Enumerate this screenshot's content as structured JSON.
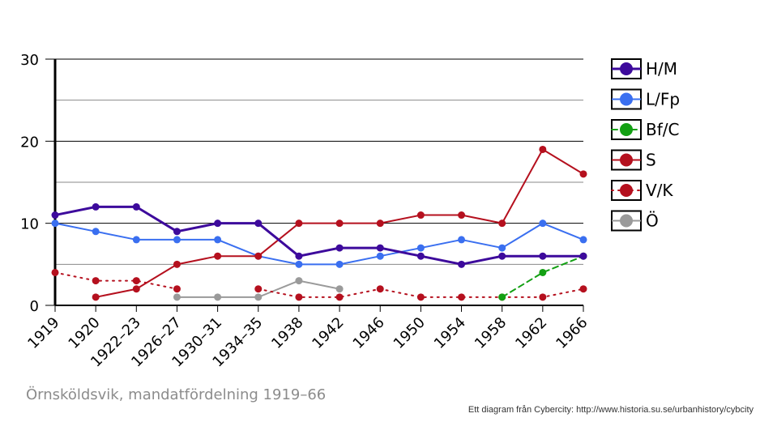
{
  "chart_data": {
    "type": "line",
    "categories": [
      "1919",
      "1920",
      "1922–23",
      "1926–27",
      "1930–31",
      "1934–35",
      "1938",
      "1942",
      "1946",
      "1950",
      "1954",
      "1958",
      "1962",
      "1966"
    ],
    "ylim": [
      0,
      30
    ],
    "yticks": [
      0,
      10,
      20,
      30
    ],
    "grid": "horizontal",
    "legend": "right",
    "series": [
      {
        "name": "H/M",
        "color": "#3d0a9c",
        "style": "solid",
        "bold": true,
        "values": [
          11,
          12,
          12,
          9,
          10,
          10,
          6,
          7,
          7,
          6,
          5,
          6,
          6,
          6
        ]
      },
      {
        "name": "L/Fp",
        "color": "#3a6ff0",
        "style": "solid",
        "bold": false,
        "values": [
          10,
          9,
          8,
          8,
          8,
          6,
          5,
          5,
          6,
          7,
          8,
          7,
          10,
          8
        ]
      },
      {
        "name": "Bf/C",
        "color": "#13a013",
        "style": "dashed",
        "bold": false,
        "values": [
          null,
          null,
          null,
          null,
          null,
          null,
          null,
          null,
          null,
          null,
          null,
          1,
          4,
          6
        ]
      },
      {
        "name": "S",
        "color": "#b5101e",
        "style": "solid",
        "bold": false,
        "values": [
          null,
          1,
          2,
          5,
          6,
          6,
          10,
          10,
          10,
          11,
          11,
          10,
          19,
          16
        ]
      },
      {
        "name": "V/K",
        "color": "#b5101e",
        "style": "dotted",
        "bold": false,
        "values": [
          4,
          3,
          3,
          2,
          null,
          2,
          1,
          1,
          2,
          1,
          1,
          1,
          1,
          2
        ]
      },
      {
        "name": "Ö",
        "color": "#9a9a9a",
        "style": "solid",
        "bold": false,
        "values": [
          null,
          null,
          null,
          1,
          1,
          1,
          3,
          2,
          null,
          null,
          null,
          null,
          null,
          null
        ]
      }
    ]
  },
  "caption": "Örnsköldsvik, mandatfördelning 1919–66",
  "credit": "Ett diagram från Cybercity: http://www.historia.su.se/urbanhistory/cybcity"
}
